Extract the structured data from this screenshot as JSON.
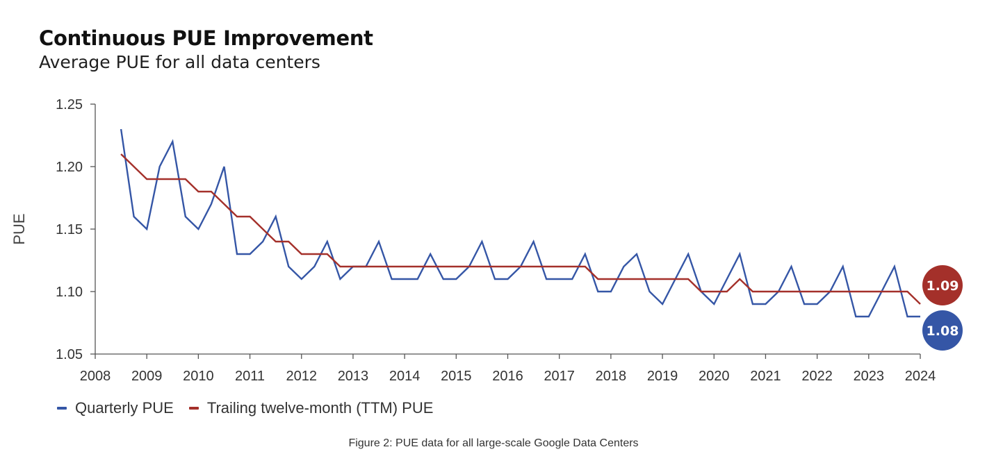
{
  "header": {
    "title": "Continuous PUE Improvement",
    "subtitle": "Average PUE for all data centers"
  },
  "caption": "Figure 2: PUE data for all large-scale Google Data Centers",
  "colors": {
    "quarterly": "#3556A6",
    "ttm": "#A4302A",
    "axis": "#555555"
  },
  "chart_data": {
    "type": "line",
    "title": "Continuous PUE Improvement",
    "subtitle": "Average PUE for all data centers",
    "xlabel": "",
    "ylabel": "PUE",
    "xlim": [
      2008,
      2024
    ],
    "ylim": [
      1.05,
      1.25
    ],
    "xticks": [
      "2008",
      "2009",
      "2010",
      "2011",
      "2012",
      "2013",
      "2014",
      "2015",
      "2016",
      "2017",
      "2018",
      "2019",
      "2020",
      "2021",
      "2022",
      "2023",
      "2024"
    ],
    "yticks": [
      "1.05",
      "1.10",
      "1.15",
      "1.20",
      "1.25"
    ],
    "grid": false,
    "legend_position": "bottom-left",
    "series": [
      {
        "name": "Quarterly PUE",
        "color": "#3556A6",
        "x": [
          2008.5,
          2008.75,
          2009,
          2009.25,
          2009.5,
          2009.75,
          2010,
          2010.25,
          2010.5,
          2010.75,
          2011,
          2011.25,
          2011.5,
          2011.75,
          2012,
          2012.25,
          2012.5,
          2012.75,
          2013,
          2013.25,
          2013.5,
          2013.75,
          2014,
          2014.25,
          2014.5,
          2014.75,
          2015,
          2015.25,
          2015.5,
          2015.75,
          2016,
          2016.25,
          2016.5,
          2016.75,
          2017,
          2017.25,
          2017.5,
          2017.75,
          2018,
          2018.25,
          2018.5,
          2018.75,
          2019,
          2019.25,
          2019.5,
          2019.75,
          2020,
          2020.25,
          2020.5,
          2020.75,
          2021,
          2021.25,
          2021.5,
          2021.75,
          2022,
          2022.25,
          2022.5,
          2022.75,
          2023,
          2023.25,
          2023.5,
          2023.75,
          2024
        ],
        "y": [
          1.23,
          1.16,
          1.15,
          1.2,
          1.22,
          1.16,
          1.15,
          1.17,
          1.2,
          1.13,
          1.13,
          1.14,
          1.16,
          1.12,
          1.11,
          1.12,
          1.14,
          1.11,
          1.12,
          1.12,
          1.14,
          1.11,
          1.11,
          1.11,
          1.13,
          1.11,
          1.11,
          1.12,
          1.14,
          1.11,
          1.11,
          1.12,
          1.14,
          1.11,
          1.11,
          1.11,
          1.13,
          1.1,
          1.1,
          1.12,
          1.13,
          1.1,
          1.09,
          1.11,
          1.13,
          1.1,
          1.09,
          1.11,
          1.13,
          1.09,
          1.09,
          1.1,
          1.12,
          1.09,
          1.09,
          1.1,
          1.12,
          1.08,
          1.08,
          1.1,
          1.12,
          1.08,
          1.08
        ],
        "end_label": "1.08"
      },
      {
        "name": "Trailing twelve-month (TTM) PUE",
        "color": "#A4302A",
        "x": [
          2008.5,
          2008.75,
          2009,
          2009.25,
          2009.5,
          2009.75,
          2010,
          2010.25,
          2010.5,
          2010.75,
          2011,
          2011.25,
          2011.5,
          2011.75,
          2012,
          2012.25,
          2012.5,
          2012.75,
          2013,
          2013.25,
          2013.5,
          2013.75,
          2014,
          2014.25,
          2014.5,
          2014.75,
          2015,
          2015.25,
          2015.5,
          2015.75,
          2016,
          2016.25,
          2016.5,
          2016.75,
          2017,
          2017.25,
          2017.5,
          2017.75,
          2018,
          2018.25,
          2018.5,
          2018.75,
          2019,
          2019.25,
          2019.5,
          2019.75,
          2020,
          2020.25,
          2020.5,
          2020.75,
          2021,
          2021.25,
          2021.5,
          2021.75,
          2022,
          2022.25,
          2022.5,
          2022.75,
          2023,
          2023.25,
          2023.5,
          2023.75,
          2024
        ],
        "y": [
          1.21,
          1.2,
          1.19,
          1.19,
          1.19,
          1.19,
          1.18,
          1.18,
          1.17,
          1.16,
          1.16,
          1.15,
          1.14,
          1.14,
          1.13,
          1.13,
          1.13,
          1.12,
          1.12,
          1.12,
          1.12,
          1.12,
          1.12,
          1.12,
          1.12,
          1.12,
          1.12,
          1.12,
          1.12,
          1.12,
          1.12,
          1.12,
          1.12,
          1.12,
          1.12,
          1.12,
          1.12,
          1.11,
          1.11,
          1.11,
          1.11,
          1.11,
          1.11,
          1.11,
          1.11,
          1.1,
          1.1,
          1.1,
          1.11,
          1.1,
          1.1,
          1.1,
          1.1,
          1.1,
          1.1,
          1.1,
          1.1,
          1.1,
          1.1,
          1.1,
          1.1,
          1.1,
          1.09
        ],
        "end_label": "1.09"
      }
    ]
  }
}
